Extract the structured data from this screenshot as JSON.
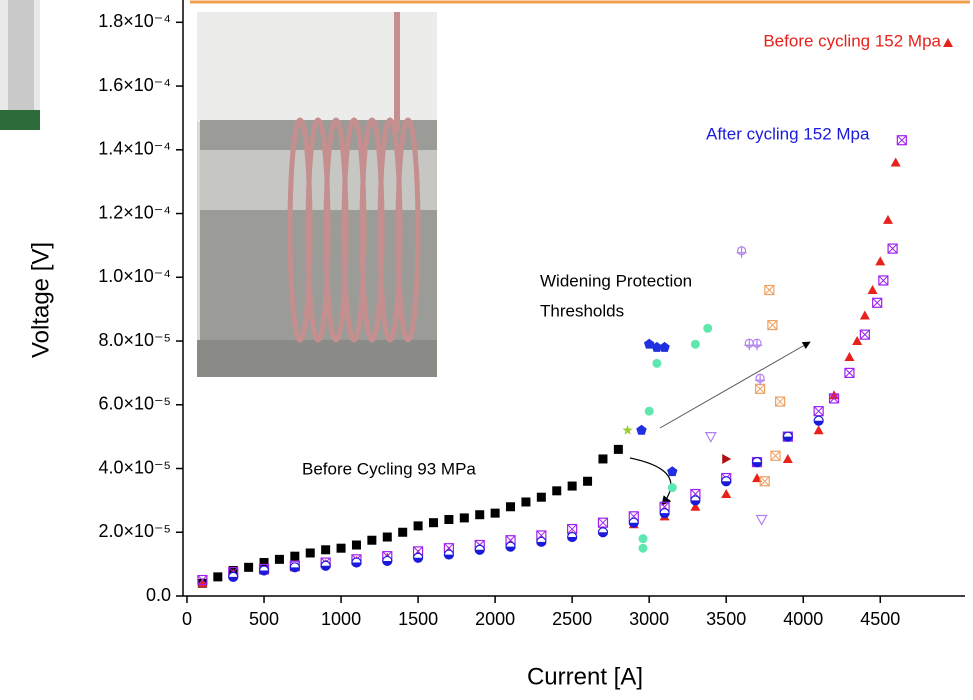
{
  "chart_data": {
    "type": "scatter",
    "x_label": "Current [A]",
    "y_label": "Voltage [V]",
    "xlim": [
      0,
      5050
    ],
    "ylim": [
      0,
      0.000187
    ],
    "xticks": [
      0,
      500,
      1000,
      1500,
      2000,
      2500,
      3000,
      3500,
      4000,
      4500
    ],
    "yticks": [
      {
        "value": 0,
        "label": "0.0"
      },
      {
        "value": 2e-05,
        "label": "2.0×10⁻⁵"
      },
      {
        "value": 4e-05,
        "label": "4.0×10⁻⁵"
      },
      {
        "value": 6e-05,
        "label": "6.0×10⁻⁵"
      },
      {
        "value": 8e-05,
        "label": "8.0×10⁻⁵"
      },
      {
        "value": 0.0001,
        "label": "1.0×10⁻⁴"
      },
      {
        "value": 0.00012,
        "label": "1.2×10⁻⁴"
      },
      {
        "value": 0.00014,
        "label": "1.4×10⁻⁴"
      },
      {
        "value": 0.00016,
        "label": "1.6×10⁻⁴"
      },
      {
        "value": 0.00018,
        "label": "1.8×10⁻⁴"
      }
    ],
    "annotations": [
      "Before cycling 152 Mpa",
      "After cycling 152 Mpa",
      "Widening Protection",
      "Thresholds",
      "Before Cycling 93 MPa"
    ],
    "series": [
      {
        "color": "#000000",
        "marker": "square",
        "x": [
          100,
          200,
          300,
          400,
          500,
          600,
          700,
          800,
          900,
          1000,
          1100,
          1200,
          1300,
          1400,
          1500,
          1600,
          1700,
          1800,
          1900,
          2000,
          2100,
          2200,
          2300,
          2400,
          2500,
          2600,
          2700,
          2800
        ],
        "values": [
          4e-06,
          6e-06,
          8e-06,
          9e-06,
          1.05e-05,
          1.15e-05,
          1.25e-05,
          1.35e-05,
          1.45e-05,
          1.5e-05,
          1.6e-05,
          1.75e-05,
          1.85e-05,
          2e-05,
          2.2e-05,
          2.3e-05,
          2.4e-05,
          2.45e-05,
          2.55e-05,
          2.6e-05,
          2.8e-05,
          2.95e-05,
          3.1e-05,
          3.3e-05,
          3.45e-05,
          3.6e-05,
          4.3e-05,
          4.6e-05
        ]
      },
      {
        "color": "#e8221b",
        "marker": "triangle",
        "x": [
          100,
          300,
          500,
          700,
          900,
          1100,
          1300,
          1500,
          1700,
          1900,
          2100,
          2300,
          2500,
          2700,
          2900,
          3100,
          3300,
          3500,
          3700,
          3900,
          4100,
          4200,
          4300,
          4350,
          4400,
          4450,
          4500,
          4550,
          4600
        ],
        "values": [
          4e-06,
          7e-06,
          8e-06,
          9e-06,
          1e-05,
          1.1e-05,
          1.2e-05,
          1.3e-05,
          1.4e-05,
          1.5e-05,
          1.6e-05,
          1.75e-05,
          1.9e-05,
          2.05e-05,
          2.25e-05,
          2.5e-05,
          2.8e-05,
          3.2e-05,
          3.7e-05,
          4.3e-05,
          5.2e-05,
          6.3e-05,
          7.5e-05,
          8e-05,
          8.8e-05,
          9.6e-05,
          0.000105,
          0.000118,
          0.000136
        ]
      },
      {
        "color": "#a020f0",
        "marker": "squarex",
        "x": [
          100,
          300,
          500,
          700,
          900,
          1100,
          1300,
          1500,
          1700,
          1900,
          2100,
          2300,
          2500,
          2700,
          2900,
          3100,
          3300,
          3500,
          3700,
          3900,
          4100,
          4200,
          4300,
          4400,
          4480,
          4520,
          4580,
          4640
        ],
        "values": [
          5e-06,
          7.5e-06,
          8.5e-06,
          9.5e-06,
          1.05e-05,
          1.15e-05,
          1.25e-05,
          1.4e-05,
          1.5e-05,
          1.6e-05,
          1.75e-05,
          1.9e-05,
          2.1e-05,
          2.3e-05,
          2.5e-05,
          2.8e-05,
          3.2e-05,
          3.7e-05,
          4.2e-05,
          5e-05,
          5.8e-05,
          6.2e-05,
          7e-05,
          8.2e-05,
          9.2e-05,
          9.9e-05,
          0.000109,
          0.000143
        ]
      },
      {
        "color": "#1a1adb",
        "marker": "halfcircle",
        "x": [
          300,
          500,
          700,
          900,
          1100,
          1300,
          1500,
          1700,
          1900,
          2100,
          2300,
          2500,
          2700,
          2900,
          3100,
          3300,
          3500,
          3700,
          3900,
          4100
        ],
        "values": [
          6e-06,
          8e-06,
          9e-06,
          9.5e-06,
          1.05e-05,
          1.1e-05,
          1.2e-05,
          1.3e-05,
          1.45e-05,
          1.55e-05,
          1.7e-05,
          1.85e-05,
          2e-05,
          2.3e-05,
          2.6e-05,
          3e-05,
          3.6e-05,
          4.2e-05,
          5e-05,
          5.5e-05
        ]
      },
      {
        "color": "#2030e0",
        "marker": "pentagon",
        "x": [
          2950,
          3000,
          3050,
          3100,
          3150
        ],
        "values": [
          5.2e-05,
          7.9e-05,
          7.8e-05,
          7.8e-05,
          3.9e-05
        ]
      },
      {
        "color": "#9acd32",
        "marker": "star",
        "x": [
          2860
        ],
        "values": [
          5.2e-05
        ]
      },
      {
        "color": "#5ee8b0",
        "marker": "dot",
        "x": [
          3000,
          3050,
          3150,
          3300,
          3380,
          2960,
          2960
        ],
        "values": [
          5.8e-05,
          7.3e-05,
          3.4e-05,
          7.9e-05,
          8.4e-05,
          1.5e-05,
          1.8e-05
        ]
      },
      {
        "color": "#f0a060",
        "marker": "squarex",
        "x": [
          3720,
          3780,
          3800,
          3850,
          3820,
          3750
        ],
        "values": [
          6.5e-05,
          9.6e-05,
          8.5e-05,
          6.1e-05,
          4.4e-05,
          3.6e-05
        ]
      },
      {
        "color": "#b080f0",
        "marker": "cross",
        "x": [
          3600,
          3650,
          3700,
          3720
        ],
        "values": [
          0.000108,
          7.9e-05,
          7.9e-05,
          6.8e-05
        ]
      },
      {
        "color": "#b080f0",
        "marker": "tridown",
        "x": [
          3400,
          3730
        ],
        "values": [
          5e-05,
          2.4e-05
        ]
      },
      {
        "color": "#b01010",
        "marker": "triright",
        "x": [
          3500
        ],
        "values": [
          4.3e-05
        ]
      }
    ]
  }
}
